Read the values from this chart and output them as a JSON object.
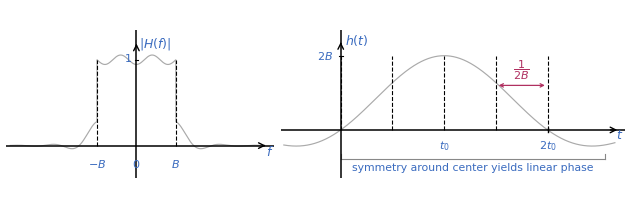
{
  "fig_width": 6.38,
  "fig_height": 1.98,
  "dpi": 100,
  "curve_color": "#aaaaaa",
  "axis_color": "#000000",
  "dashed_color": "#000000",
  "label_color": "#3a6bbf",
  "annotation_color": "#b03060",
  "bottom_text": "symmetry around center yields linear phase",
  "bottom_text_color": "#3a6bbf",
  "brace_color": "#888888"
}
